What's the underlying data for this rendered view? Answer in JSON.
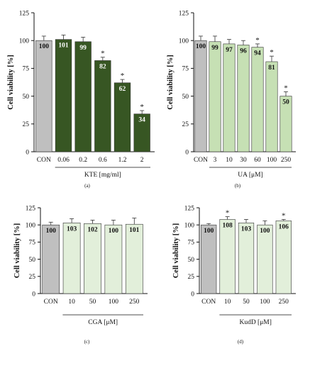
{
  "chart_data": [
    {
      "type": "bar",
      "panel_label": "(a)",
      "categories": [
        "CON",
        "0.06",
        "0.2",
        "0.6",
        "1.2",
        "2"
      ],
      "values": [
        100,
        101,
        99,
        82,
        62,
        34
      ],
      "value_labels": [
        "100",
        "101",
        "99",
        "82",
        "62",
        "34"
      ],
      "errors": [
        4,
        4,
        4,
        3,
        3,
        3
      ],
      "significant": [
        false,
        false,
        false,
        true,
        true,
        true
      ],
      "colors": [
        "#bfbfbf",
        "#375623",
        "#375623",
        "#375623",
        "#375623",
        "#375623"
      ],
      "label_colors": [
        "#111111",
        "#ffffff",
        "#ffffff",
        "#ffffff",
        "#ffffff",
        "#ffffff"
      ],
      "xlabel": "KTE [mg/ml]",
      "xlabel_underline_from": 1,
      "ylabel": "Cell viability [%]",
      "ylim": [
        0,
        125
      ],
      "yticks": [
        "0",
        "25",
        "50",
        "75",
        "100",
        "125"
      ]
    },
    {
      "type": "bar",
      "panel_label": "(b)",
      "categories": [
        "CON",
        "3",
        "10",
        "30",
        "60",
        "100",
        "250"
      ],
      "values": [
        100,
        99,
        97,
        96,
        94,
        81,
        50
      ],
      "value_labels": [
        "100",
        "99",
        "97",
        "96",
        "94",
        "81",
        "50"
      ],
      "errors": [
        4,
        5,
        4,
        4,
        3,
        5,
        4
      ],
      "significant": [
        false,
        false,
        false,
        false,
        true,
        true,
        true
      ],
      "colors": [
        "#bfbfbf",
        "#c6e0b4",
        "#c6e0b4",
        "#c6e0b4",
        "#c6e0b4",
        "#c6e0b4",
        "#c6e0b4"
      ],
      "label_colors": [
        "#111111",
        "#111111",
        "#111111",
        "#111111",
        "#111111",
        "#111111",
        "#111111"
      ],
      "xlabel": "UA [μM]",
      "xlabel_underline_from": 1,
      "ylabel": "Cell viability [%]",
      "ylim": [
        0,
        125
      ],
      "yticks": [
        "0",
        "25",
        "50",
        "75",
        "100",
        "125"
      ]
    },
    {
      "type": "bar",
      "panel_label": "(c)",
      "categories": [
        "CON",
        "10",
        "50",
        "100",
        "250"
      ],
      "values": [
        100,
        103,
        102,
        100,
        101
      ],
      "value_labels": [
        "100",
        "103",
        "102",
        "100",
        "101"
      ],
      "errors": [
        4,
        6,
        5,
        7,
        9
      ],
      "significant": [
        false,
        false,
        false,
        false,
        false
      ],
      "colors": [
        "#bfbfbf",
        "#e2efda",
        "#e2efda",
        "#e2efda",
        "#e2efda"
      ],
      "label_colors": [
        "#111111",
        "#111111",
        "#111111",
        "#111111",
        "#111111"
      ],
      "xlabel": "CGA [μM]",
      "xlabel_underline_from": 1,
      "ylabel": "Cell viability [%]",
      "ylim": [
        0,
        125
      ],
      "yticks": [
        "0",
        "25",
        "50",
        "75",
        "100",
        "125"
      ]
    },
    {
      "type": "bar",
      "panel_label": "(d)",
      "categories": [
        "CON",
        "10",
        "50",
        "100",
        "250"
      ],
      "values": [
        100,
        108,
        103,
        100,
        106
      ],
      "value_labels": [
        "100",
        "108",
        "103",
        "100",
        "106"
      ],
      "errors": [
        2,
        4,
        5,
        6,
        2
      ],
      "significant": [
        false,
        true,
        false,
        false,
        true
      ],
      "colors": [
        "#bfbfbf",
        "#e2efda",
        "#e2efda",
        "#e2efda",
        "#e2efda"
      ],
      "label_colors": [
        "#111111",
        "#111111",
        "#111111",
        "#111111",
        "#111111"
      ],
      "xlabel": "KudD [μM]",
      "xlabel_underline_from": 1,
      "ylabel": "Cell viability [%]",
      "ylim": [
        0,
        125
      ],
      "yticks": [
        "0",
        "25",
        "50",
        "75",
        "100",
        "125"
      ]
    }
  ]
}
